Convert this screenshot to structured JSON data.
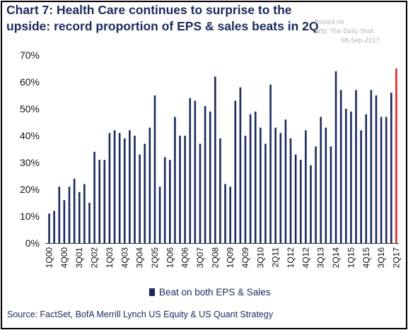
{
  "title": "Chart 7: Health Care continues to surprise to the upside: record proportion of EPS & sales beats in 2Q",
  "watermark": {
    "line1": "Posted on",
    "line2": "WSJ: The Daily Shot",
    "line3": "08-Sep-2017"
  },
  "source": "Source: FactSet, BofA Merrill Lynch US Equity & US Quant Strategy",
  "colors": {
    "bar": "#1a2a5c",
    "highlight": "#e8231f",
    "text": "#1a2a5c"
  },
  "chart_data": {
    "type": "bar",
    "title": "Chart 7: Health Care continues to surprise to the upside: record proportion of EPS & sales beats in 2Q",
    "xlabel": "",
    "ylabel": "",
    "ylim": [
      0,
      70
    ],
    "yticks": [
      "0%",
      "10%",
      "20%",
      "30%",
      "40%",
      "50%",
      "60%",
      "70%"
    ],
    "grid": false,
    "legend_position": "bottom-center",
    "x_tick_labels": [
      "1Q00",
      "4Q00",
      "3Q01",
      "2Q02",
      "1Q03",
      "4Q03",
      "3Q04",
      "2Q05",
      "1Q06",
      "4Q06",
      "3Q07",
      "2Q08",
      "1Q09",
      "4Q09",
      "3Q10",
      "2Q11",
      "1Q12",
      "4Q12",
      "3Q13",
      "2Q14",
      "1Q15",
      "4Q15",
      "3Q16",
      "2Q17"
    ],
    "series": [
      {
        "name": "Beat on both EPS & Sales",
        "categories": [
          "1Q00",
          "2Q00",
          "3Q00",
          "4Q00",
          "1Q01",
          "2Q01",
          "3Q01",
          "4Q01",
          "1Q02",
          "2Q02",
          "3Q02",
          "4Q02",
          "1Q03",
          "2Q03",
          "3Q03",
          "4Q03",
          "1Q04",
          "2Q04",
          "3Q04",
          "4Q04",
          "1Q05",
          "2Q05",
          "3Q05",
          "4Q05",
          "1Q06",
          "2Q06",
          "3Q06",
          "4Q06",
          "1Q07",
          "2Q07",
          "3Q07",
          "4Q07",
          "1Q08",
          "2Q08",
          "3Q08",
          "4Q08",
          "1Q09",
          "2Q09",
          "3Q09",
          "4Q09",
          "1Q10",
          "2Q10",
          "3Q10",
          "4Q10",
          "1Q11",
          "2Q11",
          "3Q11",
          "4Q11",
          "1Q12",
          "2Q12",
          "3Q12",
          "4Q12",
          "1Q13",
          "2Q13",
          "3Q13",
          "4Q13",
          "1Q14",
          "2Q14",
          "3Q14",
          "4Q14",
          "1Q15",
          "2Q15",
          "3Q15",
          "4Q15",
          "1Q16",
          "2Q16",
          "3Q16",
          "4Q16",
          "1Q17",
          "2Q17"
        ],
        "values": [
          11,
          12,
          21,
          16,
          21,
          24,
          19,
          22,
          15,
          34,
          31,
          31,
          41,
          42,
          41,
          39,
          42,
          40,
          33,
          37,
          43,
          55,
          21,
          32,
          31,
          47,
          40,
          40,
          54,
          53,
          37,
          51,
          49,
          62,
          39,
          22,
          21,
          53,
          58,
          40,
          48,
          49,
          43,
          37,
          59,
          43,
          41,
          46,
          39,
          33,
          31,
          42,
          29,
          36,
          47,
          43,
          36,
          64,
          57,
          50,
          49,
          57,
          42,
          48,
          57,
          55,
          47,
          47,
          56,
          65
        ]
      }
    ],
    "highlight_last": true
  }
}
